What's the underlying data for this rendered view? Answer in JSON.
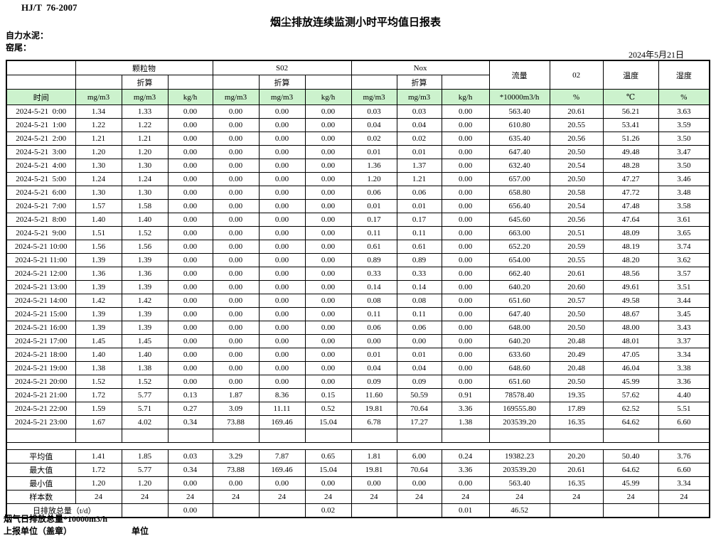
{
  "header": {
    "standard": "HJ/T  76-2007",
    "title": "烟尘排放连续监测小时平均值日报表",
    "company": "自力水泥：",
    "location": "窑尾：",
    "date": "2024年5月21日"
  },
  "table": {
    "head": {
      "time": "时间",
      "pm": "颗粒物",
      "so2": "S02",
      "nox": "Nox",
      "converted": "折算",
      "flow": "流量",
      "o2": "02",
      "temp": "温度",
      "humidity": "湿度",
      "mg": "mg/m3",
      "kg": "kg/h",
      "flow_unit": "*10000m3/h",
      "pct": "%",
      "deg": "℃"
    },
    "rows": [
      [
        "2024-5-21  0:00",
        "1.34",
        "1.33",
        "0.00",
        "0.00",
        "0.00",
        "0.00",
        "0.03",
        "0.03",
        "0.00",
        "563.40",
        "20.61",
        "56.21",
        "3.63"
      ],
      [
        "2024-5-21  1:00",
        "1.22",
        "1.22",
        "0.00",
        "0.00",
        "0.00",
        "0.00",
        "0.04",
        "0.04",
        "0.00",
        "610.80",
        "20.55",
        "53.41",
        "3.59"
      ],
      [
        "2024-5-21  2:00",
        "1.21",
        "1.21",
        "0.00",
        "0.00",
        "0.00",
        "0.00",
        "0.02",
        "0.02",
        "0.00",
        "635.40",
        "20.56",
        "51.26",
        "3.50"
      ],
      [
        "2024-5-21  3:00",
        "1.20",
        "1.20",
        "0.00",
        "0.00",
        "0.00",
        "0.00",
        "0.01",
        "0.01",
        "0.00",
        "647.40",
        "20.50",
        "49.48",
        "3.47"
      ],
      [
        "2024-5-21  4:00",
        "1.30",
        "1.30",
        "0.00",
        "0.00",
        "0.00",
        "0.00",
        "1.36",
        "1.37",
        "0.00",
        "632.40",
        "20.54",
        "48.28",
        "3.50"
      ],
      [
        "2024-5-21  5:00",
        "1.24",
        "1.24",
        "0.00",
        "0.00",
        "0.00",
        "0.00",
        "1.20",
        "1.21",
        "0.00",
        "657.00",
        "20.50",
        "47.27",
        "3.46"
      ],
      [
        "2024-5-21  6:00",
        "1.30",
        "1.30",
        "0.00",
        "0.00",
        "0.00",
        "0.00",
        "0.06",
        "0.06",
        "0.00",
        "658.80",
        "20.58",
        "47.72",
        "3.48"
      ],
      [
        "2024-5-21  7:00",
        "1.57",
        "1.58",
        "0.00",
        "0.00",
        "0.00",
        "0.00",
        "0.01",
        "0.01",
        "0.00",
        "656.40",
        "20.54",
        "47.48",
        "3.58"
      ],
      [
        "2024-5-21  8:00",
        "1.40",
        "1.40",
        "0.00",
        "0.00",
        "0.00",
        "0.00",
        "0.17",
        "0.17",
        "0.00",
        "645.60",
        "20.56",
        "47.64",
        "3.61"
      ],
      [
        "2024-5-21  9:00",
        "1.51",
        "1.52",
        "0.00",
        "0.00",
        "0.00",
        "0.00",
        "0.11",
        "0.11",
        "0.00",
        "663.00",
        "20.51",
        "48.09",
        "3.65"
      ],
      [
        "2024-5-21 10:00",
        "1.56",
        "1.56",
        "0.00",
        "0.00",
        "0.00",
        "0.00",
        "0.61",
        "0.61",
        "0.00",
        "652.20",
        "20.59",
        "48.19",
        "3.74"
      ],
      [
        "2024-5-21 11:00",
        "1.39",
        "1.39",
        "0.00",
        "0.00",
        "0.00",
        "0.00",
        "0.89",
        "0.89",
        "0.00",
        "654.00",
        "20.55",
        "48.20",
        "3.62"
      ],
      [
        "2024-5-21 12:00",
        "1.36",
        "1.36",
        "0.00",
        "0.00",
        "0.00",
        "0.00",
        "0.33",
        "0.33",
        "0.00",
        "662.40",
        "20.61",
        "48.56",
        "3.57"
      ],
      [
        "2024-5-21 13:00",
        "1.39",
        "1.39",
        "0.00",
        "0.00",
        "0.00",
        "0.00",
        "0.14",
        "0.14",
        "0.00",
        "640.20",
        "20.60",
        "49.61",
        "3.51"
      ],
      [
        "2024-5-21 14:00",
        "1.42",
        "1.42",
        "0.00",
        "0.00",
        "0.00",
        "0.00",
        "0.08",
        "0.08",
        "0.00",
        "651.60",
        "20.57",
        "49.58",
        "3.44"
      ],
      [
        "2024-5-21 15:00",
        "1.39",
        "1.39",
        "0.00",
        "0.00",
        "0.00",
        "0.00",
        "0.11",
        "0.11",
        "0.00",
        "647.40",
        "20.50",
        "48.67",
        "3.45"
      ],
      [
        "2024-5-21 16:00",
        "1.39",
        "1.39",
        "0.00",
        "0.00",
        "0.00",
        "0.00",
        "0.06",
        "0.06",
        "0.00",
        "648.00",
        "20.50",
        "48.00",
        "3.43"
      ],
      [
        "2024-5-21 17:00",
        "1.45",
        "1.45",
        "0.00",
        "0.00",
        "0.00",
        "0.00",
        "0.00",
        "0.00",
        "0.00",
        "640.20",
        "20.48",
        "48.01",
        "3.37"
      ],
      [
        "2024-5-21 18:00",
        "1.40",
        "1.40",
        "0.00",
        "0.00",
        "0.00",
        "0.00",
        "0.01",
        "0.01",
        "0.00",
        "633.60",
        "20.49",
        "47.05",
        "3.34"
      ],
      [
        "2024-5-21 19:00",
        "1.38",
        "1.38",
        "0.00",
        "0.00",
        "0.00",
        "0.00",
        "0.04",
        "0.04",
        "0.00",
        "648.60",
        "20.48",
        "46.04",
        "3.38"
      ],
      [
        "2024-5-21 20:00",
        "1.52",
        "1.52",
        "0.00",
        "0.00",
        "0.00",
        "0.00",
        "0.09",
        "0.09",
        "0.00",
        "651.60",
        "20.50",
        "45.99",
        "3.36"
      ],
      [
        "2024-5-21 21:00",
        "1.72",
        "5.77",
        "0.13",
        "1.87",
        "8.36",
        "0.15",
        "11.60",
        "50.59",
        "0.91",
        "78578.40",
        "19.35",
        "57.62",
        "4.40"
      ],
      [
        "2024-5-21 22:00",
        "1.59",
        "5.71",
        "0.27",
        "3.09",
        "11.11",
        "0.52",
        "19.81",
        "70.64",
        "3.36",
        "169555.80",
        "17.89",
        "62.52",
        "5.51"
      ],
      [
        "2024-5-21 23:00",
        "1.67",
        "4.02",
        "0.34",
        "73.88",
        "169.46",
        "15.04",
        "6.78",
        "17.27",
        "1.38",
        "203539.20",
        "16.35",
        "64.62",
        "6.60"
      ],
      [
        "",
        "",
        "",
        "",
        "",
        "",
        "",
        "",
        "",
        "",
        "",
        "",
        "",
        ""
      ]
    ],
    "summary": [
      {
        "label": "平均值",
        "values": [
          "1.41",
          "1.85",
          "0.03",
          "3.29",
          "7.87",
          "0.65",
          "1.81",
          "6.00",
          "0.24",
          "19382.23",
          "20.20",
          "50.40",
          "3.76"
        ]
      },
      {
        "label": "最大值",
        "values": [
          "1.72",
          "5.77",
          "0.34",
          "73.88",
          "169.46",
          "15.04",
          "19.81",
          "70.64",
          "3.36",
          "203539.20",
          "20.61",
          "64.62",
          "6.60"
        ]
      },
      {
        "label": "最小值",
        "values": [
          "1.20",
          "1.20",
          "0.00",
          "0.00",
          "0.00",
          "0.00",
          "0.00",
          "0.00",
          "0.00",
          "563.40",
          "16.35",
          "45.99",
          "3.34"
        ]
      },
      {
        "label": "样本数",
        "values": [
          "24",
          "24",
          "24",
          "24",
          "24",
          "24",
          "24",
          "24",
          "24",
          "24",
          "24",
          "24",
          "24"
        ]
      }
    ],
    "total_row": {
      "label": "日排放总量（t/d）",
      "values": [
        "",
        "0.00",
        "",
        "",
        "0.02",
        "",
        "",
        "0.01",
        "46.52",
        "",
        "",
        ""
      ]
    }
  },
  "footer": {
    "line1": "烟气日排放总量*10000m3/h",
    "line2": "上报单位（盖章）",
    "line3": "单位"
  }
}
